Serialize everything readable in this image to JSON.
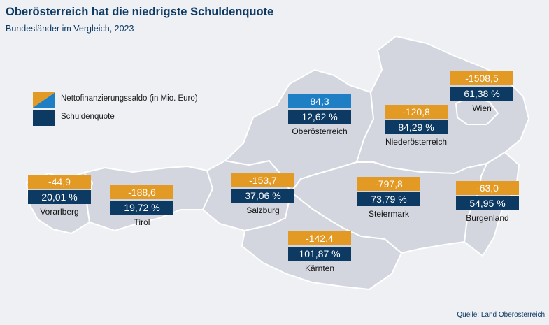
{
  "title": "Oberösterreich hat die niedrigste Schuldenquote",
  "subtitle": "Bundesländer im Vergleich, 2023",
  "colors": {
    "background": "#eef0f4",
    "map_fill": "#d3d6de",
    "map_border": "#ffffff",
    "saldo_negative": "#e29a24",
    "saldo_positive": "#1f7fc4",
    "quote": "#0d3a63",
    "title": "#0d3a63"
  },
  "legend": [
    {
      "label": "Nettofinanzierungssaldo (in Mio. Euro)",
      "icon": "split-orange-blue-swatch"
    },
    {
      "label": "Schuldenquote",
      "icon": "navy-swatch"
    }
  ],
  "regions": [
    {
      "name": "Vorarlberg",
      "saldo": "-44,9",
      "quote": "20,01 %",
      "saldo_positive": false
    },
    {
      "name": "Tirol",
      "saldo": "-188,6",
      "quote": "19,72 %",
      "saldo_positive": false
    },
    {
      "name": "Salzburg",
      "saldo": "-153,7",
      "quote": "37,06 %",
      "saldo_positive": false
    },
    {
      "name": "Oberösterreich",
      "saldo": "84,3",
      "quote": "12,62 %",
      "saldo_positive": true
    },
    {
      "name": "Niederösterreich",
      "saldo": "-120,8",
      "quote": "84,29 %",
      "saldo_positive": false
    },
    {
      "name": "Wien",
      "saldo": "-1508,5",
      "quote": "61,38 %",
      "saldo_positive": false
    },
    {
      "name": "Steiermark",
      "saldo": "-797,8",
      "quote": "73,79 %",
      "saldo_positive": false
    },
    {
      "name": "Burgenland",
      "saldo": "-63,0",
      "quote": "54,95 %",
      "saldo_positive": false
    },
    {
      "name": "Kärnten",
      "saldo": "-142,4",
      "quote": "101,87 %",
      "saldo_positive": false
    }
  ],
  "source": "Quelle: Land Oberösterreich"
}
